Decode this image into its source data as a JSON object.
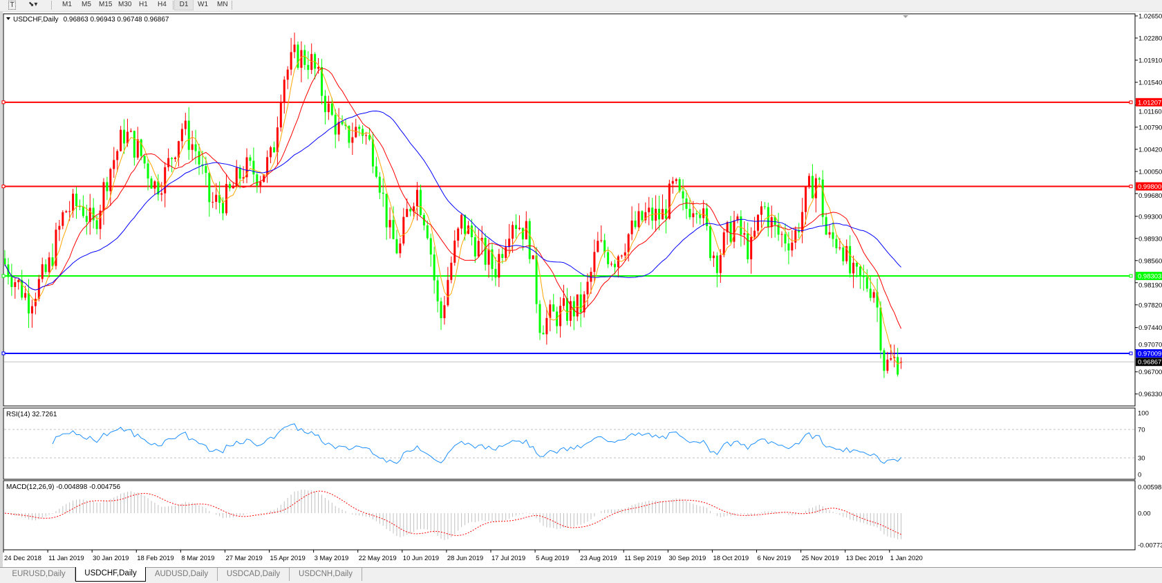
{
  "toolbar": {
    "tools": [
      {
        "name": "text-tool",
        "glyph": "T"
      },
      {
        "name": "line-tools",
        "glyph": "⬊▾"
      }
    ],
    "timeframes": [
      "M1",
      "M5",
      "M15",
      "M30",
      "H1",
      "H4",
      "D1",
      "W1",
      "MN"
    ],
    "active_timeframe": "D1"
  },
  "chart_header": {
    "symbol": "USDCHF,Daily",
    "ohlc": "0.96863 0.96943 0.96748 0.96867"
  },
  "rsi_label": "RSI(14) 32.7261",
  "macd_label": "MACD(12,26,9) -0.004898 -0.004756",
  "tabs": [
    {
      "label": "EURUSD,Daily",
      "active": false
    },
    {
      "label": "USDCHF,Daily",
      "active": true
    },
    {
      "label": "AUDUSD,Daily",
      "active": false
    },
    {
      "label": "USDCAD,Daily",
      "active": false
    },
    {
      "label": "USDCNH,Daily",
      "active": false
    }
  ],
  "chart_data": {
    "type": "candlestick",
    "symbol": "USDCHF",
    "timeframe": "Daily",
    "last_bar": {
      "open": 0.96863,
      "high": 0.96943,
      "low": 0.96748,
      "close": 0.96867
    },
    "colors": {
      "bull": "#ff0000",
      "bear": "#00ff00",
      "ma_fast": "#ffa500",
      "ma_mid": "#ff0000",
      "ma_slow": "#0000ff",
      "rsi": "#1e90ff",
      "macd_hist": "#c0c0c0",
      "macd_signal": "#ff0000"
    },
    "approx_closes": [
      [
        "2018-12-24",
        0.985
      ],
      [
        "2019-01-03",
        0.979
      ],
      [
        "2019-01-11",
        0.984
      ],
      [
        "2019-01-18",
        0.994
      ],
      [
        "2019-01-25",
        0.995
      ],
      [
        "2019-01-30",
        0.991
      ],
      [
        "2019-02-05",
        1.0
      ],
      [
        "2019-02-12",
        1.007
      ],
      [
        "2019-02-18",
        1.004
      ],
      [
        "2019-02-25",
        0.998
      ],
      [
        "2019-03-01",
        1.0
      ],
      [
        "2019-03-08",
        1.008
      ],
      [
        "2019-03-14",
        1.004
      ],
      [
        "2019-03-20",
        0.995
      ],
      [
        "2019-03-27",
        0.996
      ],
      [
        "2019-04-03",
        1.001
      ],
      [
        "2019-04-10",
        1.0
      ],
      [
        "2019-04-15",
        1.003
      ],
      [
        "2019-04-19",
        1.016
      ],
      [
        "2019-04-25",
        1.02
      ],
      [
        "2019-05-01",
        1.019
      ],
      [
        "2019-05-03",
        1.017
      ],
      [
        "2019-05-09",
        1.01
      ],
      [
        "2019-05-15",
        1.006
      ],
      [
        "2019-05-22",
        1.008
      ],
      [
        "2019-05-28",
        1.003
      ],
      [
        "2019-06-03",
        0.99
      ],
      [
        "2019-06-07",
        0.987
      ],
      [
        "2019-06-10",
        0.993
      ],
      [
        "2019-06-14",
        0.998
      ],
      [
        "2019-06-19",
        0.991
      ],
      [
        "2019-06-24",
        0.975
      ],
      [
        "2019-06-28",
        0.984
      ],
      [
        "2019-07-03",
        0.992
      ],
      [
        "2019-07-10",
        0.988
      ],
      [
        "2019-07-17",
        0.984
      ],
      [
        "2019-07-24",
        0.993
      ],
      [
        "2019-07-31",
        0.99
      ],
      [
        "2019-08-05",
        0.975
      ],
      [
        "2019-08-09",
        0.976
      ],
      [
        "2019-08-15",
        0.977
      ],
      [
        "2019-08-23",
        0.978
      ],
      [
        "2019-08-29",
        0.988
      ],
      [
        "2019-09-05",
        0.986
      ],
      [
        "2019-09-11",
        0.99
      ],
      [
        "2019-09-18",
        0.993
      ],
      [
        "2019-09-25",
        0.993
      ],
      [
        "2019-09-30",
        0.998
      ],
      [
        "2019-10-04",
        0.994
      ],
      [
        "2019-10-10",
        0.996
      ],
      [
        "2019-10-15",
        0.988
      ],
      [
        "2019-10-18",
        0.986
      ],
      [
        "2019-10-25",
        0.992
      ],
      [
        "2019-11-01",
        0.987
      ],
      [
        "2019-11-06",
        0.995
      ],
      [
        "2019-11-12",
        0.99
      ],
      [
        "2019-11-19",
        0.989
      ],
      [
        "2019-11-25",
        0.997
      ],
      [
        "2019-11-29",
        1.0
      ],
      [
        "2019-12-03",
        0.989
      ],
      [
        "2019-12-09",
        0.989
      ],
      [
        "2019-12-13",
        0.983
      ],
      [
        "2019-12-18",
        0.982
      ],
      [
        "2019-12-23",
        0.981
      ],
      [
        "2019-12-27",
        0.968
      ],
      [
        "2020-01-01",
        0.969
      ],
      [
        "2020-01-03",
        0.96867
      ]
    ],
    "moving_averages": [
      {
        "color": "#ffa500"
      },
      {
        "color": "#ff0000"
      },
      {
        "color": "#0000ff"
      }
    ],
    "horizontal_lines": [
      {
        "price": "1.01207",
        "color": "#ff0000",
        "text_color": "#ffffff"
      },
      {
        "price": "0.99800",
        "color": "#ff0000",
        "text_color": "#ffffff"
      },
      {
        "price": "0.98303",
        "color": "#00ff00",
        "text_color": "#ffffff"
      },
      {
        "price": "0.97009",
        "color": "#0000ff",
        "text_color": "#ffffff"
      }
    ],
    "current_price": {
      "price": "0.96867",
      "color": "#000000",
      "line_color": "#c0c0c0"
    },
    "price_axis": {
      "ticks": [
        "1.02650",
        "1.02280",
        "1.01910",
        "1.01540",
        "1.01160",
        "1.00790",
        "1.00420",
        "1.00050",
        "0.99680",
        "0.99300",
        "0.98930",
        "0.98560",
        "0.98190",
        "0.97820",
        "0.97440",
        "0.97070",
        "0.96700",
        "0.96330"
      ]
    },
    "rsi": {
      "period": 14,
      "levels": [
        70,
        30
      ],
      "ticks": [
        "100",
        "70",
        "30",
        "0"
      ]
    },
    "macd": {
      "fast": 12,
      "slow": 26,
      "signal": 9,
      "ticks": [
        "0.005986",
        "0.00",
        "-0.00773"
      ]
    },
    "date_labels": [
      "24 Dec 2018",
      "11 Jan 2019",
      "30 Jan 2019",
      "18 Feb 2019",
      "8 Mar 2019",
      "27 Mar 2019",
      "15 Apr 2019",
      "3 May 2019",
      "22 May 2019",
      "10 Jun 2019",
      "28 Jun 2019",
      "17 Jul 2019",
      "5 Aug 2019",
      "23 Aug 2019",
      "11 Sep 2019",
      "30 Sep 2019",
      "18 Oct 2019",
      "6 Nov 2019",
      "25 Nov 2019",
      "13 Dec 2019",
      "1 Jan 2020"
    ]
  }
}
